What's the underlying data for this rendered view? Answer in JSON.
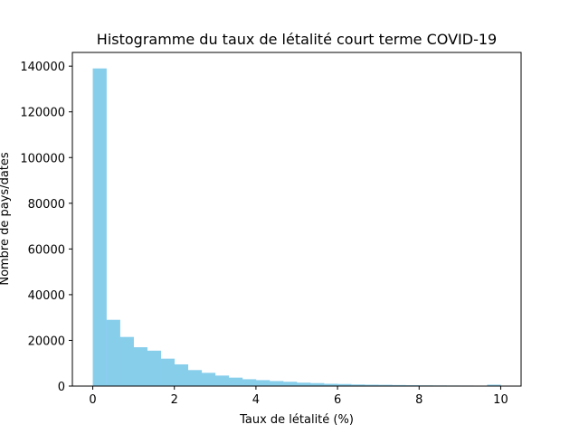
{
  "chart_data": {
    "type": "bar",
    "title": "Histogramme du taux de létalité court terme COVID-19",
    "xlabel": "Taux de létalité (%)",
    "ylabel": "Nombre de pays/dates",
    "xlim": [
      -0.5,
      10.5
    ],
    "ylim": [
      0,
      146000
    ],
    "xticks": [
      0,
      2,
      4,
      6,
      8,
      10
    ],
    "xtick_labels": [
      "0",
      "2",
      "4",
      "6",
      "8",
      "10"
    ],
    "yticks": [
      0,
      20000,
      40000,
      60000,
      80000,
      100000,
      120000,
      140000
    ],
    "ytick_labels": [
      "0",
      "20000",
      "40000",
      "60000",
      "80000",
      "100000",
      "120000",
      "140000"
    ],
    "bin_edges": [
      0.0,
      0.333,
      0.667,
      1.0,
      1.333,
      1.667,
      2.0,
      2.333,
      2.667,
      3.0,
      3.333,
      3.667,
      4.0,
      4.333,
      4.667,
      5.0,
      5.333,
      5.667,
      6.0,
      6.333,
      6.667,
      7.0,
      7.333,
      7.667,
      8.0,
      8.333,
      8.667,
      9.0,
      9.333,
      9.667,
      10.0
    ],
    "values": [
      139000,
      29000,
      21500,
      17000,
      15500,
      12000,
      9500,
      7000,
      5800,
      4600,
      3700,
      3000,
      2600,
      2200,
      1900,
      1500,
      1300,
      1000,
      900,
      700,
      600,
      550,
      450,
      380,
      320,
      280,
      250,
      220,
      190,
      600
    ],
    "bar_color": "#87ceeb",
    "grid": false,
    "legend": "none"
  }
}
